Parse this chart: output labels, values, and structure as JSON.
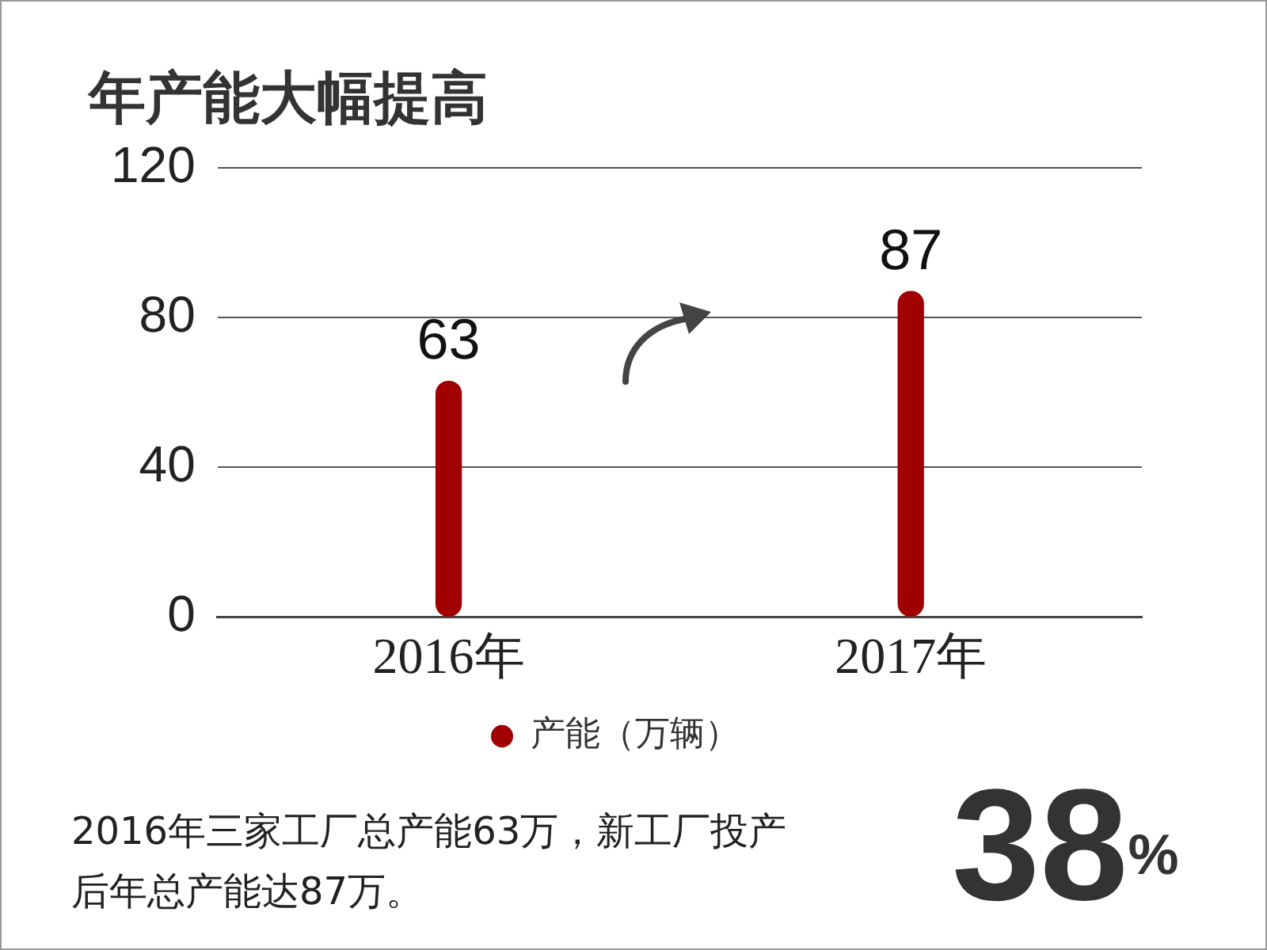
{
  "chart_data": {
    "type": "bar",
    "title": "年产能大幅提高",
    "categories": [
      "2016年",
      "2017年"
    ],
    "series": [
      {
        "name": "产能（万辆）",
        "color": "#a00000",
        "values": [
          63,
          87
        ]
      }
    ],
    "ylim": [
      0,
      120
    ],
    "yticks": [
      0,
      40,
      80,
      120
    ],
    "grid": "y",
    "legend": "bottom",
    "data_labels": true,
    "annotations": [
      "2016年三家工厂总产能63万，新工厂投产后年总产能达87万。",
      "38$^{%}$"
    ]
  }
}
